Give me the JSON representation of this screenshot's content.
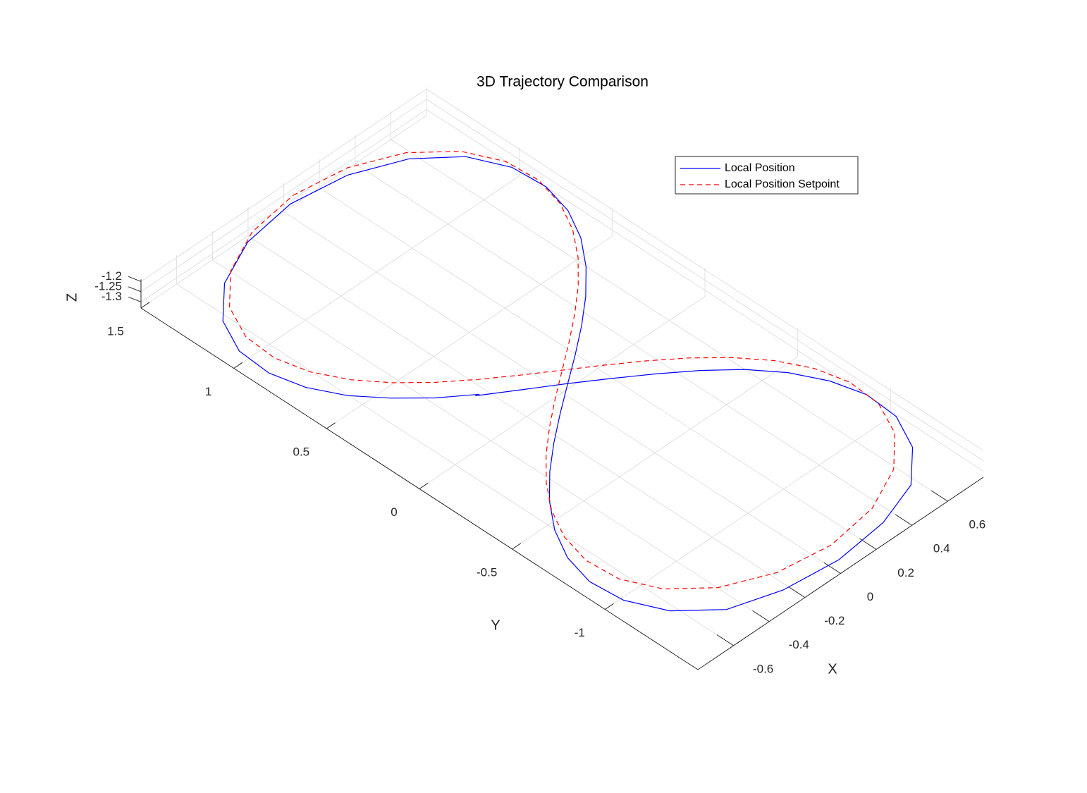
{
  "chart_data": {
    "type": "line3d",
    "title": "3D Trajectory Comparison",
    "xlabel": "X",
    "ylabel": "Y",
    "zlabel": "Z",
    "xlim": [
      -0.8,
      0.8
    ],
    "ylim": [
      -1.5,
      1.5
    ],
    "zlim": [
      -1.33,
      -1.19
    ],
    "xticks": [
      -0.6,
      -0.4,
      -0.2,
      0,
      0.2,
      0.4,
      0.6
    ],
    "yticks": [
      -1,
      -0.5,
      0,
      0.5,
      1,
      1.5
    ],
    "zticks": [
      -1.3,
      -1.25,
      -1.2
    ],
    "grid": true,
    "legend_location": "northeast",
    "series": [
      {
        "name": "Local Position",
        "color": "#0000ff",
        "line_style": "solid",
        "x": [
          -0.286,
          -0.421,
          -0.546,
          -0.654,
          -0.735,
          -0.777,
          -0.764,
          -0.68,
          -0.517,
          -0.28,
          0,
          0.28,
          0.517,
          0.68,
          0.764,
          0.777,
          0.735,
          0.654,
          0.546,
          0.421,
          0.286,
          0.144,
          0,
          -0.144,
          -0.286,
          -0.421,
          -0.546,
          -0.654,
          -0.735,
          -0.777,
          -0.764,
          -0.68,
          -0.517,
          -0.28,
          0,
          0.28,
          0.517,
          0.68,
          0.764,
          0.777,
          0.735,
          0.654,
          0.546,
          0.421,
          0.286,
          0.144,
          0,
          -0.144,
          -0.3
        ],
        "y": [
          0.17,
          0.278,
          0.396,
          0.528,
          0.675,
          0.834,
          1.005,
          1.174,
          1.322,
          1.425,
          1.464,
          1.425,
          1.322,
          1.174,
          1.005,
          0.834,
          0.675,
          0.528,
          0.396,
          0.278,
          0.17,
          0.068,
          -0.03,
          -0.128,
          -0.23,
          -0.338,
          -0.456,
          -0.588,
          -0.735,
          -0.894,
          -1.065,
          -1.234,
          -1.382,
          -1.46,
          -1.49,
          -1.46,
          -1.382,
          -1.234,
          -1.065,
          -0.894,
          -0.735,
          -0.588,
          -0.456,
          -0.338,
          -0.23,
          -0.128,
          -0.03,
          0.068,
          0.18
        ],
        "z": [
          -1.27,
          -1.272,
          -1.269,
          -1.271,
          -1.27,
          -1.268,
          -1.27,
          -1.272,
          -1.27,
          -1.269,
          -1.27,
          -1.271,
          -1.27,
          -1.268,
          -1.27,
          -1.272,
          -1.27,
          -1.269,
          -1.27,
          -1.271,
          -1.27,
          -1.27,
          -1.268,
          -1.27,
          -1.272,
          -1.27,
          -1.269,
          -1.27,
          -1.271,
          -1.27,
          -1.268,
          -1.27,
          -1.272,
          -1.27,
          -1.269,
          -1.27,
          -1.271,
          -1.27,
          -1.268,
          -1.27,
          -1.272,
          -1.27,
          -1.269,
          -1.27,
          -1.271,
          -1.27,
          -1.268,
          -1.27,
          -1.275
        ]
      },
      {
        "name": "Local Position Setpoint",
        "color": "#ff0000",
        "line_style": "dashed",
        "x": [
          0,
          0.267,
          0.492,
          0.648,
          0.728,
          0.74,
          0.7,
          0.623,
          0.52,
          0.401,
          0.272,
          0.137,
          0,
          -0.137,
          -0.272,
          -0.401,
          -0.52,
          -0.623,
          -0.7,
          -0.74,
          -0.728,
          -0.648,
          -0.492,
          -0.267,
          0,
          0.267,
          0.492,
          0.648,
          0.728,
          0.74,
          0.7,
          0.623,
          0.52,
          0.401,
          0.272,
          0.137,
          0,
          -0.137,
          -0.272,
          -0.401,
          -0.52,
          -0.623,
          -0.7,
          -0.74,
          -0.728,
          -0.648,
          -0.492,
          -0.267,
          0
        ],
        "y": [
          1.45,
          1.413,
          1.313,
          1.169,
          1.005,
          0.839,
          0.684,
          0.542,
          0.414,
          0.299,
          0.194,
          0.095,
          0,
          -0.095,
          -0.194,
          -0.299,
          -0.414,
          -0.542,
          -0.684,
          -0.839,
          -1.005,
          -1.169,
          -1.313,
          -1.413,
          -1.45,
          -1.413,
          -1.313,
          -1.169,
          -1.005,
          -0.839,
          -0.684,
          -0.542,
          -0.414,
          -0.299,
          -0.194,
          -0.095,
          0,
          0.095,
          0.194,
          0.299,
          0.414,
          0.542,
          0.684,
          0.839,
          1.005,
          1.169,
          1.313,
          1.413,
          1.45
        ],
        "z": [
          -1.22,
          -1.22,
          -1.22,
          -1.22,
          -1.22,
          -1.22,
          -1.22,
          -1.22,
          -1.22,
          -1.22,
          -1.22,
          -1.22,
          -1.22,
          -1.22,
          -1.22,
          -1.22,
          -1.22,
          -1.22,
          -1.22,
          -1.22,
          -1.22,
          -1.22,
          -1.22,
          -1.22,
          -1.22,
          -1.22,
          -1.22,
          -1.22,
          -1.22,
          -1.22,
          -1.22,
          -1.22,
          -1.22,
          -1.22,
          -1.22,
          -1.22,
          -1.22,
          -1.22,
          -1.22,
          -1.22,
          -1.22,
          -1.22,
          -1.22,
          -1.22,
          -1.22,
          -1.22,
          -1.22,
          -1.22,
          -1.22
        ]
      }
    ]
  }
}
